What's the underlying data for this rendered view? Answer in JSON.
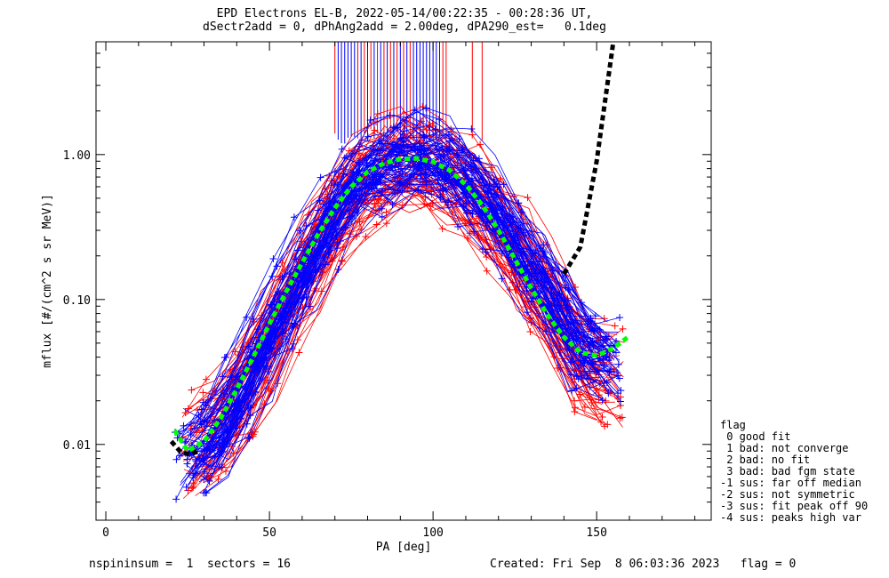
{
  "chart_data": {
    "type": "line",
    "title": "EPD Electrons EL-B, 2022-05-14/00:22:35 - 00:28:36 UT,",
    "subtitle": "dSectr2add = 0, dPhAng2add = 2.00deg, dPA290_est=   0.1deg",
    "xlabel": "PA [deg]",
    "ylabel": "mflux [#/(cm^2 s sr MeV)]",
    "xlim": [
      -3,
      185
    ],
    "ylim": [
      0.003,
      6.0
    ],
    "yscale": "log",
    "x_ticks": [
      0,
      50,
      100,
      150
    ],
    "x_tick_labels": [
      "0",
      "50",
      "100",
      "150"
    ],
    "y_ticks": [
      0.01,
      0.1,
      1.0
    ],
    "y_tick_labels": [
      "0.01",
      "0.10",
      "1.00"
    ],
    "grid": false,
    "series": [
      {
        "color": "#0000ff",
        "style": "thin lines with + markers (many sweeps)",
        "x": [
          26,
          33,
          40,
          47,
          54,
          61,
          68,
          75,
          82,
          89,
          96,
          103,
          110,
          117,
          124,
          131,
          138,
          145,
          153
        ],
        "y": [
          0.009,
          0.012,
          0.022,
          0.045,
          0.09,
          0.18,
          0.35,
          0.6,
          0.82,
          0.93,
          0.95,
          0.86,
          0.68,
          0.46,
          0.28,
          0.16,
          0.09,
          0.05,
          0.04
        ]
      },
      {
        "color": "#ff0000",
        "style": "thin lines with + markers (many sweeps)",
        "x": [
          28,
          35,
          42,
          49,
          56,
          63,
          70,
          77,
          84,
          91,
          98,
          105,
          112,
          119,
          126,
          133,
          140,
          147,
          154
        ],
        "y": [
          0.01,
          0.014,
          0.024,
          0.05,
          0.1,
          0.2,
          0.38,
          0.63,
          0.8,
          0.88,
          0.87,
          0.76,
          0.58,
          0.38,
          0.22,
          0.12,
          0.065,
          0.035,
          0.03
        ]
      },
      {
        "color": "#00ff00",
        "style": "thick dashed fit",
        "x": [
          21,
          25,
          30,
          35,
          40,
          45,
          50,
          55,
          60,
          65,
          70,
          75,
          80,
          85,
          90,
          95,
          100,
          105,
          110,
          115,
          120,
          125,
          130,
          135,
          140,
          145,
          150,
          155,
          160
        ],
        "y": [
          0.0125,
          0.009,
          0.0105,
          0.015,
          0.024,
          0.04,
          0.068,
          0.112,
          0.18,
          0.285,
          0.43,
          0.6,
          0.76,
          0.87,
          0.93,
          0.94,
          0.89,
          0.78,
          0.62,
          0.45,
          0.3,
          0.19,
          0.12,
          0.078,
          0.055,
          0.043,
          0.041,
          0.046,
          0.056
        ]
      },
      {
        "color": "#000000",
        "style": "thick dashed fit",
        "x": [
          20,
          23,
          26,
          28,
          140,
          145,
          150,
          155
        ],
        "y": [
          0.0105,
          0.0088,
          0.0085,
          0.009,
          0.15,
          0.23,
          0.9,
          5.8
        ]
      }
    ],
    "saturated_traces_blue_x": [
      71,
      72,
      73,
      74,
      75,
      76,
      78,
      80,
      82,
      84,
      86,
      88,
      90,
      92,
      94,
      95,
      96,
      97,
      98,
      99,
      100,
      101,
      102
    ],
    "saturated_traces_red_x": [
      70,
      77,
      79,
      81,
      83,
      85,
      87,
      89,
      91,
      93,
      103,
      104,
      112,
      115
    ]
  },
  "footer": {
    "left": "nspininsum =  1  sectors = 16",
    "right": "Created: Fri Sep  8 06:03:36 2023   flag = 0"
  },
  "legend": {
    "title": "flag",
    "items": [
      " 0 good fit",
      " 1 bad: not converge",
      " 2 bad: no fit",
      " 3 bad: bad fgm state",
      "-1 sus: far off median",
      "-2 sus: not symmetric",
      "-3 sus: fit peak off 90",
      "-4 sus: peaks high var"
    ]
  }
}
